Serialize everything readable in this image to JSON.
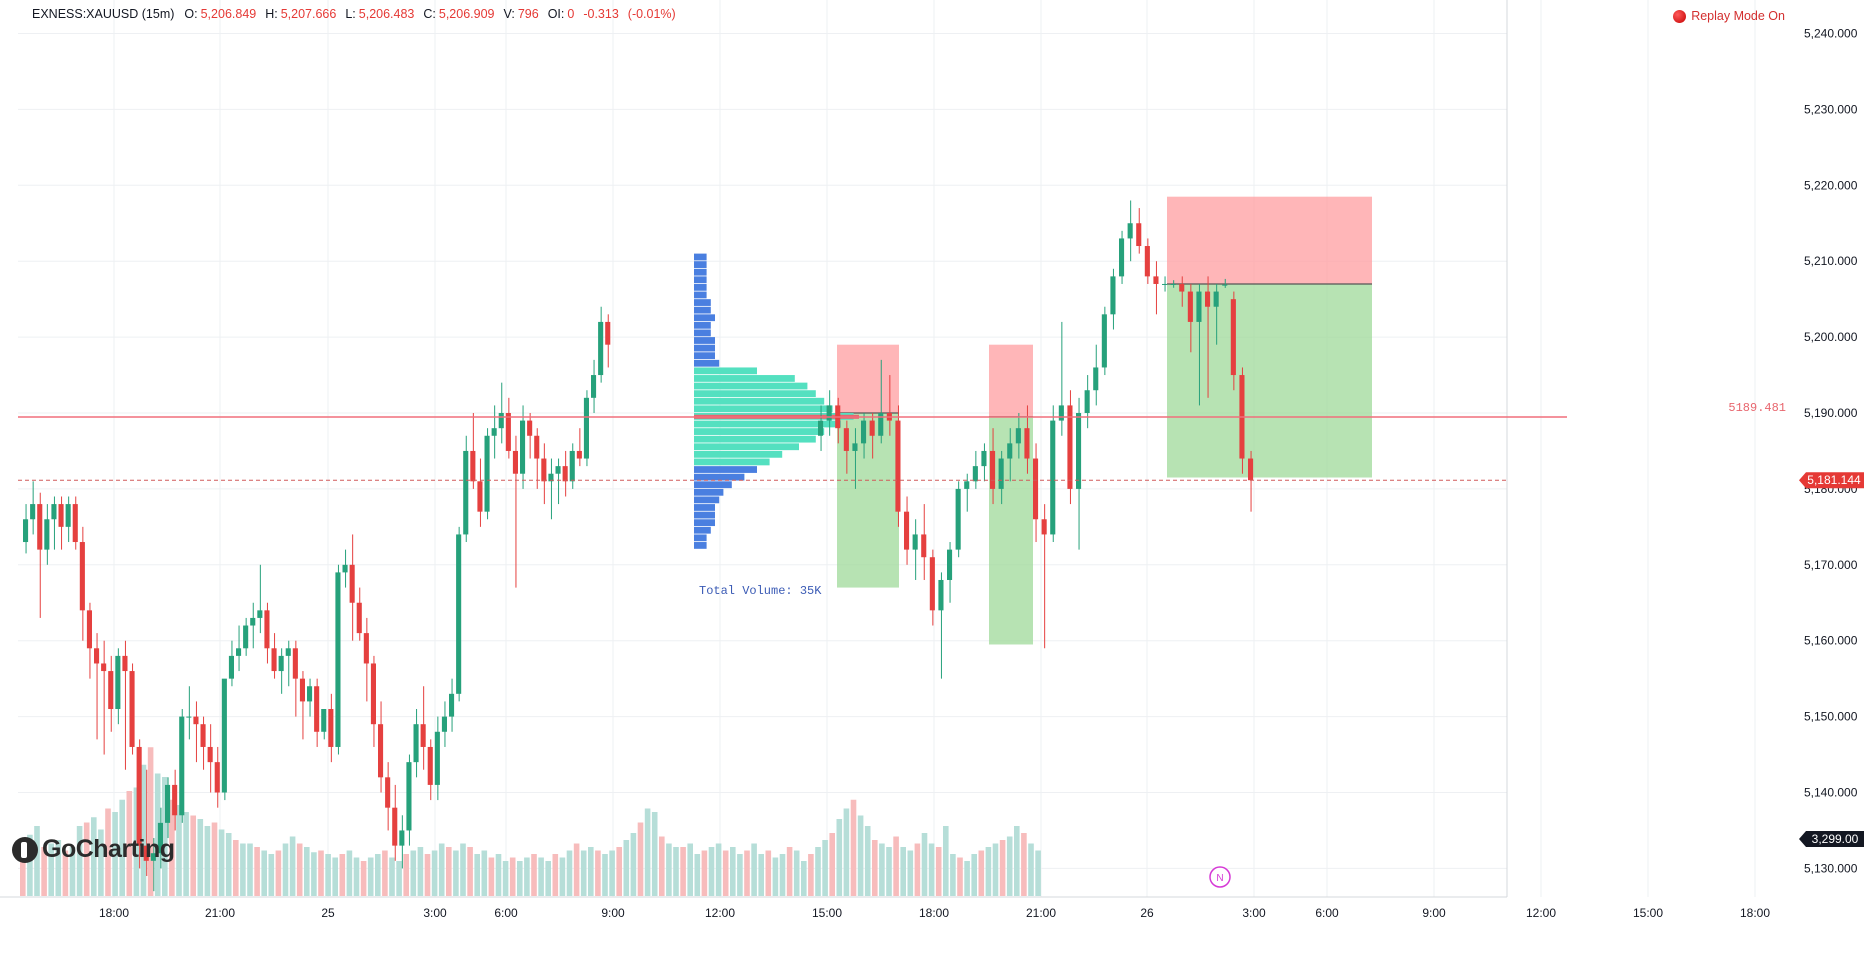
{
  "header": {
    "symbol": "EXNESS:XAUUSD (15m)",
    "o_label": "O:",
    "o_value": "5,206.849",
    "h_label": "H:",
    "h_value": "5,207.666",
    "l_label": "L:",
    "l_value": "5,206.483",
    "c_label": "C:",
    "c_value": "5,206.909",
    "v_label": "V:",
    "v_value": "796",
    "oi_label": "OI:",
    "oi_value": "0",
    "change": "-0.313",
    "change_pct": "(-0.01%)"
  },
  "replay": {
    "label": "Replay Mode On"
  },
  "logo": {
    "text": "GoCharting"
  },
  "colors": {
    "up": "#26a17b",
    "down": "#e5403f",
    "vol_up": "#b6ded8",
    "vol_down": "#f7bcbc",
    "profile_blue": "#4a7fe0",
    "profile_teal": "#54e0c0",
    "poc": "#e8666e",
    "sl_zone": "#ff9ea0",
    "tp_zone": "#9fd99a",
    "price_tag": "#e53935",
    "grid": "#eef0f3"
  },
  "chart_data": {
    "type": "candlestick",
    "symbol": "EXNESS:XAUUSD",
    "interval": "15m",
    "y_axis": {
      "range": [
        5127,
        5245
      ],
      "ticks": [
        "5,240.000",
        "5,230.000",
        "5,220.000",
        "5,210.000",
        "5,200.000",
        "5,190.000",
        "5,180.000",
        "5,170.000",
        "5,160.000",
        "5,150.000",
        "5,140.000",
        "5,130.000"
      ],
      "tick_values": [
        5240,
        5230,
        5220,
        5210,
        5200,
        5190,
        5180,
        5170,
        5160,
        5150,
        5140,
        5130
      ]
    },
    "x_axis": {
      "labels": [
        "18:00",
        "21:00",
        "25",
        "3:00",
        "6:00",
        "9:00",
        "12:00",
        "15:00",
        "18:00",
        "21:00",
        "26",
        "3:00",
        "6:00",
        "9:00",
        "12:00",
        "15:00",
        "18:00"
      ]
    },
    "grid": true,
    "ohlc_start_bar": 0,
    "candles_ohlc": [
      [
        5173.0,
        5178.0,
        5171.5,
        5176.0
      ],
      [
        5176.0,
        5181.0,
        5174.0,
        5178.0
      ],
      [
        5178.0,
        5179.5,
        5163.0,
        5172.0
      ],
      [
        5172.0,
        5178.0,
        5170.0,
        5176.0
      ],
      [
        5176.0,
        5179.0,
        5172.0,
        5178.0
      ],
      [
        5178.0,
        5179.0,
        5172.0,
        5175.0
      ],
      [
        5175.0,
        5179.0,
        5173.0,
        5178.0
      ],
      [
        5178.0,
        5179.0,
        5172.0,
        5173.0
      ],
      [
        5173.0,
        5175.0,
        5160.0,
        5164.0
      ],
      [
        5164.0,
        5165.0,
        5155.0,
        5159.0
      ],
      [
        5159.0,
        5161.0,
        5147.0,
        5157.0
      ],
      [
        5157.0,
        5160.0,
        5145.0,
        5156.0
      ],
      [
        5156.0,
        5158.0,
        5148.0,
        5151.0
      ],
      [
        5151.0,
        5159.0,
        5149.0,
        5158.0
      ],
      [
        5158.0,
        5160.0,
        5143.0,
        5156.0
      ],
      [
        5156.0,
        5157.0,
        5145.0,
        5146.0
      ],
      [
        5146.0,
        5147.0,
        5130.0,
        5133.0
      ],
      [
        5133.0,
        5143.0,
        5129.0,
        5131.0
      ],
      [
        5131.0,
        5134.0,
        5127.0,
        5132.0
      ],
      [
        5132.0,
        5138.0,
        5130.0,
        5136.0
      ],
      [
        5136.0,
        5142.0,
        5134.0,
        5141.0
      ],
      [
        5141.0,
        5143.0,
        5135.0,
        5137.0
      ],
      [
        5137.0,
        5151.0,
        5136.0,
        5150.0
      ],
      [
        5150.0,
        5154.0,
        5147.0,
        5150.0
      ],
      [
        5150.0,
        5152.0,
        5144.0,
        5149.0
      ],
      [
        5149.0,
        5150.0,
        5143.0,
        5146.0
      ],
      [
        5146.0,
        5149.0,
        5140.0,
        5144.0
      ],
      [
        5144.0,
        5146.0,
        5138.0,
        5140.0
      ],
      [
        5140.0,
        5152.0,
        5139.0,
        5155.0
      ],
      [
        5155.0,
        5160.0,
        5154.0,
        5158.0
      ],
      [
        5158.0,
        5162.0,
        5156.0,
        5159.0
      ],
      [
        5159.0,
        5163.0,
        5158.0,
        5162.0
      ],
      [
        5162.0,
        5165.0,
        5159.0,
        5163.0
      ],
      [
        5163.0,
        5170.0,
        5161.0,
        5164.0
      ],
      [
        5164.0,
        5165.0,
        5157.0,
        5159.0
      ],
      [
        5159.0,
        5161.0,
        5155.0,
        5156.0
      ],
      [
        5156.0,
        5159.0,
        5153.0,
        5158.0
      ],
      [
        5158.0,
        5160.0,
        5154.0,
        5159.0
      ],
      [
        5159.0,
        5160.0,
        5150.0,
        5155.0
      ],
      [
        5155.0,
        5156.0,
        5147.0,
        5152.0
      ],
      [
        5152.0,
        5155.0,
        5150.0,
        5154.0
      ],
      [
        5154.0,
        5155.0,
        5146.0,
        5148.0
      ],
      [
        5148.0,
        5151.0,
        5147.0,
        5151.0
      ],
      [
        5151.0,
        5153.0,
        5144.0,
        5146.0
      ],
      [
        5146.0,
        5170.0,
        5145.0,
        5169.0
      ],
      [
        5169.0,
        5172.0,
        5167.0,
        5170.0
      ],
      [
        5170.0,
        5174.0,
        5160.0,
        5165.0
      ],
      [
        5165.0,
        5167.0,
        5160.0,
        5161.0
      ],
      [
        5161.0,
        5163.0,
        5152.0,
        5157.0
      ],
      [
        5157.0,
        5158.0,
        5146.0,
        5149.0
      ],
      [
        5149.0,
        5152.0,
        5140.0,
        5142.0
      ],
      [
        5142.0,
        5144.0,
        5135.0,
        5138.0
      ],
      [
        5138.0,
        5141.0,
        5131.0,
        5133.0
      ],
      [
        5133.0,
        5137.0,
        5130.0,
        5135.0
      ],
      [
        5135.0,
        5145.0,
        5133.0,
        5144.0
      ],
      [
        5144.0,
        5151.0,
        5142.0,
        5149.0
      ],
      [
        5149.0,
        5154.0,
        5143.0,
        5146.0
      ],
      [
        5146.0,
        5147.0,
        5139.0,
        5141.0
      ],
      [
        5141.0,
        5150.0,
        5139.0,
        5148.0
      ],
      [
        5148.0,
        5152.0,
        5146.0,
        5150.0
      ],
      [
        5150.0,
        5155.0,
        5148.0,
        5153.0
      ],
      [
        5153.0,
        5175.0,
        5152.0,
        5174.0
      ],
      [
        5174.0,
        5187.0,
        5173.0,
        5185.0
      ],
      [
        5185.0,
        5190.0,
        5180.0,
        5181.0
      ],
      [
        5181.0,
        5184.0,
        5175.0,
        5177.0
      ],
      [
        5177.0,
        5188.0,
        5176.0,
        5187.0
      ],
      [
        5187.0,
        5191.0,
        5184.0,
        5188.0
      ],
      [
        5188.0,
        5194.0,
        5186.0,
        5190.0
      ],
      [
        5190.0,
        5192.0,
        5184.0,
        5185.0
      ],
      [
        5185.0,
        5187.0,
        5167.0,
        5182.0
      ],
      [
        5182.0,
        5191.0,
        5180.0,
        5189.0
      ],
      [
        5189.0,
        5190.0,
        5184.0,
        5187.0
      ],
      [
        5187.0,
        5188.0,
        5180.0,
        5184.0
      ],
      [
        5184.0,
        5186.0,
        5178.0,
        5181.0
      ],
      [
        5181.0,
        5184.0,
        5176.0,
        5182.0
      ],
      [
        5182.0,
        5184.0,
        5178.0,
        5183.0
      ],
      [
        5183.0,
        5185.0,
        5179.0,
        5181.0
      ],
      [
        5181.0,
        5186.0,
        5180.0,
        5185.0
      ],
      [
        5185.0,
        5188.0,
        5183.0,
        5184.0
      ],
      [
        5184.0,
        5193.0,
        5183.0,
        5192.0
      ],
      [
        5192.0,
        5197.0,
        5190.0,
        5195.0
      ],
      [
        5195.0,
        5204.0,
        5194.0,
        5202.0
      ],
      [
        5202.0,
        5203.0,
        5196.0,
        5199.0
      ]
    ],
    "ohlc_bars_b": [
      [
        5187.0,
        5191.0,
        5185.0,
        5189.0
      ],
      [
        5189.0,
        5193.0,
        5187.0,
        5191.0
      ],
      [
        5191.0,
        5192.0,
        5186.0,
        5188.0
      ],
      [
        5188.0,
        5189.0,
        5182.0,
        5185.0
      ],
      [
        5185.0,
        5188.0,
        5180.0,
        5186.0
      ],
      [
        5186.0,
        5190.0,
        5184.0,
        5189.0
      ],
      [
        5189.0,
        5190.0,
        5184.0,
        5187.0
      ],
      [
        5187.0,
        5197.0,
        5186.0,
        5190.0
      ],
      [
        5190.0,
        5195.0,
        5187.0,
        5189.0
      ],
      [
        5189.0,
        5191.0,
        5175.0,
        5177.0
      ],
      [
        5177.0,
        5179.0,
        5170.0,
        5172.0
      ],
      [
        5172.0,
        5176.0,
        5168.0,
        5174.0
      ],
      [
        5174.0,
        5178.0,
        5168.0,
        5171.0
      ],
      [
        5171.0,
        5172.0,
        5162.0,
        5164.0
      ],
      [
        5164.0,
        5169.0,
        5155.0,
        5168.0
      ],
      [
        5168.0,
        5173.0,
        5165.0,
        5172.0
      ],
      [
        5172.0,
        5181.0,
        5171.0,
        5180.0
      ],
      [
        5180.0,
        5182.0,
        5177.0,
        5181.0
      ],
      [
        5181.0,
        5185.0,
        5180.0,
        5183.0
      ],
      [
        5183.0,
        5186.0,
        5181.0,
        5185.0
      ],
      [
        5185.0,
        5188.0,
        5178.0,
        5180.0
      ],
      [
        5180.0,
        5185.0,
        5178.0,
        5184.0
      ],
      [
        5184.0,
        5188.0,
        5181.0,
        5186.0
      ],
      [
        5186.0,
        5190.0,
        5184.0,
        5188.0
      ],
      [
        5188.0,
        5191.0,
        5182.0,
        5184.0
      ],
      [
        5184.0,
        5186.0,
        5173.0,
        5176.0
      ],
      [
        5176.0,
        5178.0,
        5159.0,
        5174.0
      ],
      [
        5174.0,
        5191.0,
        5173.0,
        5189.0
      ],
      [
        5189.0,
        5202.0,
        5187.0,
        5191.0
      ],
      [
        5191.0,
        5193.0,
        5178.0,
        5180.0
      ],
      [
        5180.0,
        5192.0,
        5172.0,
        5190.0
      ],
      [
        5190.0,
        5195.0,
        5188.0,
        5193.0
      ],
      [
        5193.0,
        5199.0,
        5191.0,
        5196.0
      ],
      [
        5196.0,
        5204.0,
        5195.0,
        5203.0
      ],
      [
        5203.0,
        5209.0,
        5201.0,
        5208.0
      ],
      [
        5208.0,
        5214.0,
        5207.0,
        5213.0
      ],
      [
        5213.0,
        5218.0,
        5210.0,
        5215.0
      ],
      [
        5215.0,
        5217.0,
        5211.0,
        5212.0
      ],
      [
        5212.0,
        5213.0,
        5207.0,
        5208.0
      ],
      [
        5208.0,
        5210.0,
        5203.0,
        5207.0
      ],
      [
        5207.0,
        5208.0,
        5206.0,
        5207.0
      ],
      [
        5207.0,
        5207.5,
        5206.5,
        5207.0
      ],
      [
        5207.0,
        5208.0,
        5204.0,
        5206.0
      ],
      [
        5206.0,
        5207.0,
        5198.0,
        5202.0
      ],
      [
        5202.0,
        5207.0,
        5191.0,
        5206.0
      ],
      [
        5206.0,
        5208.0,
        5192.0,
        5204.0
      ],
      [
        5204.0,
        5207.0,
        5199.0,
        5206.0
      ],
      [
        5206.849,
        5207.666,
        5206.483,
        5206.909
      ],
      [
        5205.0,
        5206.0,
        5193.0,
        5195.0
      ],
      [
        5195.0,
        5196.0,
        5182.0,
        5184.0
      ],
      [
        5184.0,
        5185.0,
        5177.0,
        5181.144
      ]
    ],
    "volume_up_down": "derived from candle direction",
    "volume": [
      30,
      35,
      40,
      28,
      30,
      32,
      26,
      28,
      40,
      42,
      45,
      38,
      50,
      48,
      55,
      60,
      62,
      75,
      85,
      70,
      68,
      55,
      52,
      48,
      46,
      44,
      40,
      42,
      38,
      36,
      32,
      30,
      30,
      28,
      26,
      24,
      26,
      30,
      34,
      30,
      28,
      25,
      26,
      24,
      22,
      24,
      26,
      22,
      20,
      22,
      24,
      26,
      22,
      20,
      24,
      26,
      28,
      24,
      26,
      30,
      28,
      26,
      30,
      28,
      24,
      26,
      22,
      24,
      20,
      22,
      20,
      22,
      24,
      22,
      20,
      24,
      22,
      26,
      30,
      26,
      28,
      26,
      24,
      26,
      28,
      32,
      36,
      42,
      50,
      48,
      34,
      30,
      28,
      28,
      30,
      24,
      26,
      28,
      30,
      26,
      28,
      24,
      26,
      30,
      24,
      26,
      22,
      24,
      28,
      26,
      20,
      24,
      28,
      32,
      36,
      44,
      50,
      55,
      46,
      40,
      32,
      30,
      28,
      34,
      28,
      26,
      30,
      36,
      30,
      28,
      40,
      24,
      22,
      20,
      24,
      26,
      28,
      30,
      32,
      34,
      40,
      36,
      30,
      26
    ],
    "volume_profile": {
      "label": "Total Volume: 35K",
      "rows": [
        {
          "price": 5210.5,
          "vol": 3,
          "band": "blue"
        },
        {
          "price": 5209.5,
          "vol": 3,
          "band": "blue"
        },
        {
          "price": 5208.5,
          "vol": 3,
          "band": "blue"
        },
        {
          "price": 5207.5,
          "vol": 3,
          "band": "blue"
        },
        {
          "price": 5206.5,
          "vol": 3,
          "band": "blue"
        },
        {
          "price": 5205.5,
          "vol": 3,
          "band": "blue"
        },
        {
          "price": 5204.5,
          "vol": 4,
          "band": "blue"
        },
        {
          "price": 5203.5,
          "vol": 4,
          "band": "blue"
        },
        {
          "price": 5202.5,
          "vol": 5,
          "band": "blue"
        },
        {
          "price": 5201.5,
          "vol": 4,
          "band": "blue"
        },
        {
          "price": 5200.5,
          "vol": 4,
          "band": "blue"
        },
        {
          "price": 5199.5,
          "vol": 5,
          "band": "blue"
        },
        {
          "price": 5198.5,
          "vol": 5,
          "band": "blue"
        },
        {
          "price": 5197.5,
          "vol": 5,
          "band": "blue"
        },
        {
          "price": 5196.5,
          "vol": 6,
          "band": "blue"
        },
        {
          "price": 5195.5,
          "vol": 15,
          "band": "teal"
        },
        {
          "price": 5194.5,
          "vol": 24,
          "band": "teal"
        },
        {
          "price": 5193.5,
          "vol": 27,
          "band": "teal"
        },
        {
          "price": 5192.5,
          "vol": 29,
          "band": "teal"
        },
        {
          "price": 5191.5,
          "vol": 31,
          "band": "teal"
        },
        {
          "price": 5190.5,
          "vol": 33,
          "band": "teal"
        },
        {
          "price": 5189.5,
          "vol": 38,
          "band": "teal"
        },
        {
          "price": 5188.5,
          "vol": 35,
          "band": "teal"
        },
        {
          "price": 5187.5,
          "vol": 31,
          "band": "teal"
        },
        {
          "price": 5186.5,
          "vol": 29,
          "band": "teal"
        },
        {
          "price": 5185.5,
          "vol": 25,
          "band": "teal"
        },
        {
          "price": 5184.5,
          "vol": 21,
          "band": "teal"
        },
        {
          "price": 5183.5,
          "vol": 18,
          "band": "teal"
        },
        {
          "price": 5182.5,
          "vol": 15,
          "band": "blue"
        },
        {
          "price": 5181.5,
          "vol": 12,
          "band": "blue"
        },
        {
          "price": 5180.5,
          "vol": 9,
          "band": "blue"
        },
        {
          "price": 5179.5,
          "vol": 7,
          "band": "blue"
        },
        {
          "price": 5178.5,
          "vol": 6,
          "band": "blue"
        },
        {
          "price": 5177.5,
          "vol": 5,
          "band": "blue"
        },
        {
          "price": 5176.5,
          "vol": 5,
          "band": "blue"
        },
        {
          "price": 5175.5,
          "vol": 5,
          "band": "blue"
        },
        {
          "price": 5174.5,
          "vol": 4,
          "band": "blue"
        },
        {
          "price": 5173.5,
          "vol": 3,
          "band": "blue"
        },
        {
          "price": 5172.5,
          "vol": 3,
          "band": "blue"
        }
      ],
      "poc_price": 5189.5
    },
    "positions": [
      {
        "entry": 5190.0,
        "stop": 5199.0,
        "target": 5167.0
      },
      {
        "entry": 5189.5,
        "stop": 5199.0,
        "target": 5159.5
      },
      {
        "entry": 5207.0,
        "stop": 5218.5,
        "target": 5181.5
      }
    ],
    "horizontal_line": {
      "price": 5189.481,
      "label": "5189.481"
    },
    "current_price": {
      "price": 5181.144,
      "label": "5,181.144"
    },
    "volume_tag": {
      "label": "3,299.00"
    },
    "news_marker": {
      "label": "N"
    }
  }
}
